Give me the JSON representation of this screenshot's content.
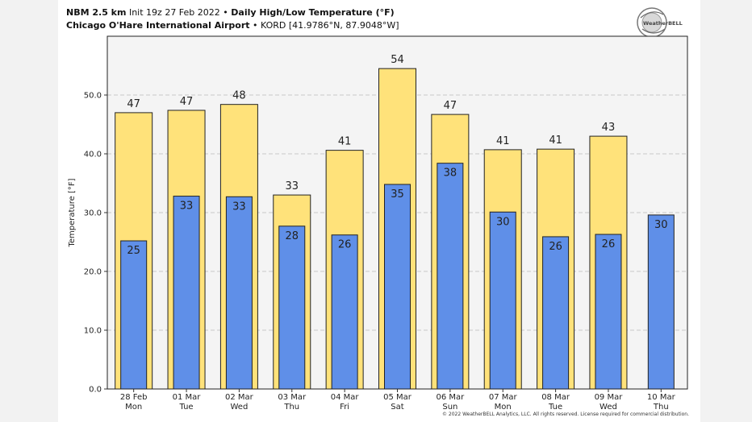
{
  "header": {
    "model": "NBM 2.5 km",
    "init": " Init 19z 27 Feb 2022 ",
    "sep1": "• ",
    "product": "Daily High/Low Temperature (°F)",
    "station_name": "Chicago O'Hare International Airport",
    "sep2": " • ",
    "station_id": "KORD [41.9786°N, 87.9048°W]"
  },
  "logo": {
    "text": "WeatherBELL"
  },
  "copyright": "© 2022 WeatherBELL Analytics, LLC. All rights reserved. License required for commercial distribution.",
  "chart_data": {
    "type": "bar",
    "ylabel": "Temperature [°F]",
    "ylim": [
      0,
      60
    ],
    "yticks": [
      "0.0",
      "10.0",
      "20.0",
      "30.0",
      "40.0",
      "50.0"
    ],
    "grid": true,
    "categories": [
      [
        "28 Feb",
        "Mon"
      ],
      [
        "01 Mar",
        "Tue"
      ],
      [
        "02 Mar",
        "Wed"
      ],
      [
        "03 Mar",
        "Thu"
      ],
      [
        "04 Mar",
        "Fri"
      ],
      [
        "05 Mar",
        "Sat"
      ],
      [
        "06 Mar",
        "Sun"
      ],
      [
        "07 Mar",
        "Mon"
      ],
      [
        "08 Mar",
        "Tue"
      ],
      [
        "09 Mar",
        "Wed"
      ],
      [
        "10 Mar",
        "Thu"
      ]
    ],
    "series": [
      {
        "values": [
          47,
          47.4,
          48.4,
          33,
          40.6,
          54.5,
          46.7,
          40.7,
          40.8,
          43,
          null
        ],
        "labels": [
          "47",
          "47",
          "48",
          "33",
          "41",
          "54",
          "47",
          "41",
          "41",
          "43",
          ""
        ],
        "color": "#ffe27a"
      },
      {
        "values": [
          25.2,
          32.8,
          32.7,
          27.7,
          26.2,
          34.8,
          38.4,
          30.1,
          25.9,
          26.3,
          29.6
        ],
        "labels": [
          "25",
          "33",
          "33",
          "28",
          "26",
          "35",
          "38",
          "30",
          "26",
          "26",
          "30"
        ],
        "color": "#5f8fe8"
      }
    ]
  }
}
